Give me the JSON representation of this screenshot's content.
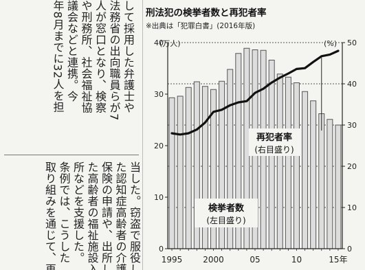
{
  "article": {
    "upper_columns": [
      "して採用した弁護士や",
      "法務省の出向職員らが7",
      "人が窓口となり、検察",
      "や刑務所、社会福祉協",
      "議会などと連携。今",
      "年8月までに32人を担"
    ],
    "lower_columns": [
      "当した。窃盗で服役し",
      "た認知症高齢者の介護",
      "保険の申請や、出所し",
      "た高齢者の福祉施設入",
      "所などを支援した。",
      "条例では、こうした",
      "取り組みを通じて、再"
    ]
  },
  "chart_data": {
    "type": "bar",
    "title": "刑法犯の検挙者数と再犯者率",
    "subtitle": "※出典は「犯罪白書」(2016年版)",
    "left_axis_unit": "(万人)",
    "right_axis_unit": "(%)",
    "ylim_left": [
      0,
      40
    ],
    "ylim_right": [
      0,
      50
    ],
    "left_ticks": [
      "0",
      "10",
      "20",
      "30",
      "40"
    ],
    "right_ticks": [
      "0",
      "10",
      "20",
      "30",
      "40",
      "50"
    ],
    "x_tick_labels": [
      {
        "year": 1995,
        "label": "1995"
      },
      {
        "year": 2000,
        "label": "2000"
      },
      {
        "year": 2005,
        "label": "05"
      },
      {
        "year": 2010,
        "label": "10"
      },
      {
        "year": 2015,
        "label": "15年"
      }
    ],
    "years": [
      1995,
      1996,
      1997,
      1998,
      1999,
      2000,
      2001,
      2002,
      2003,
      2004,
      2005,
      2006,
      2007,
      2008,
      2009,
      2010,
      2011,
      2012,
      2013,
      2014,
      2015
    ],
    "series": [
      {
        "name": "検挙者数",
        "axis_note": "(左目盛り)",
        "type": "bar",
        "axis": "left",
        "values": [
          29.3,
          29.6,
          31.3,
          32.4,
          31.5,
          30.9,
          32.5,
          34.8,
          37.9,
          38.9,
          38.6,
          38.5,
          36.6,
          33.9,
          33.3,
          32.2,
          30.5,
          28.7,
          26.2,
          25.1,
          24.0
        ]
      },
      {
        "name": "再犯者率",
        "axis_note": "(右目盛り)",
        "type": "line",
        "axis": "right",
        "values": [
          28.0,
          27.7,
          28.0,
          28.9,
          30.6,
          33.2,
          33.7,
          34.8,
          35.5,
          35.8,
          37.8,
          38.8,
          40.3,
          41.5,
          42.5,
          43.6,
          43.8,
          45.3,
          46.7,
          47.1,
          48.0
        ]
      }
    ]
  }
}
